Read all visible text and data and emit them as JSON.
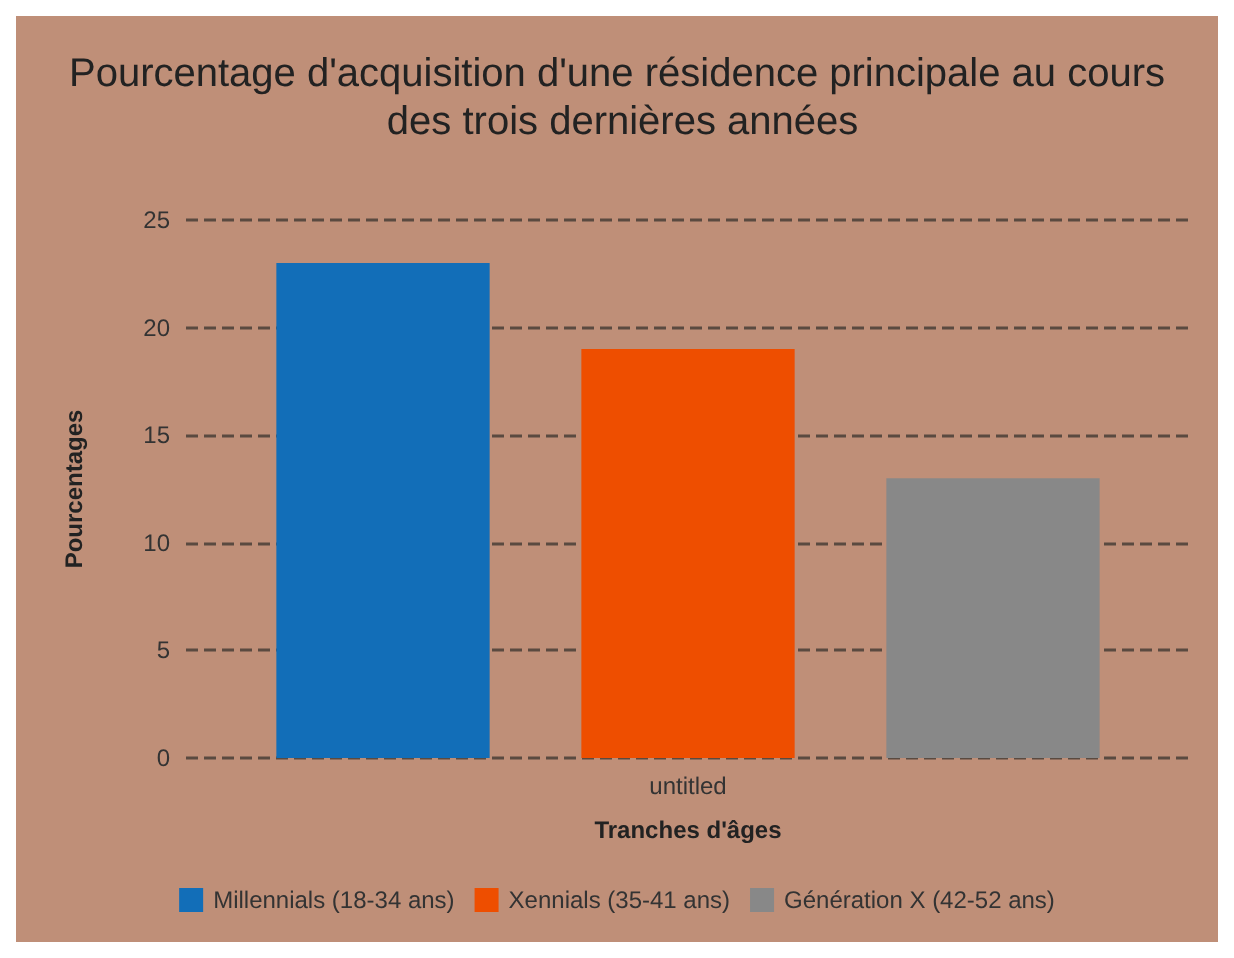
{
  "chart_data": {
    "type": "bar",
    "title": "Pourcentage d'acquisition d'une résidence principale au cours des trois dernières années",
    "xlabel": "Tranches d'âges",
    "ylabel": "Pourcentages",
    "categories": [
      "untitled"
    ],
    "series": [
      {
        "name": "Millennials (18-34 ans)",
        "color": "#126eb8",
        "values": [
          23
        ]
      },
      {
        "name": "Xennials (35-41 ans)",
        "color": "#ee4e00",
        "values": [
          19
        ]
      },
      {
        "name": "Génération X (42-52 ans)",
        "color": "#888888",
        "values": [
          13
        ]
      }
    ],
    "ylim": [
      0,
      25
    ],
    "yticks": [
      0,
      5,
      10,
      15,
      20,
      25
    ],
    "grid": "y",
    "legend": "bottom"
  }
}
